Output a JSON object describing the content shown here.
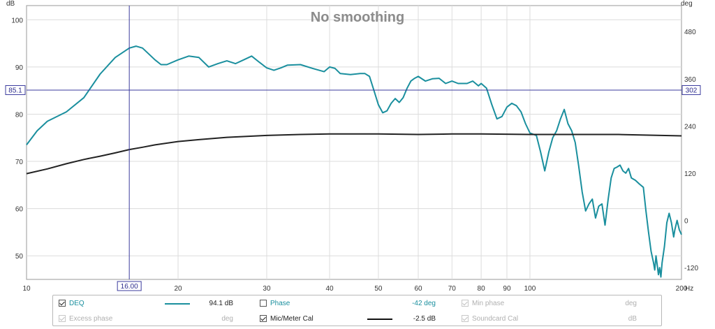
{
  "chart_data": {
    "type": "line",
    "title": "No smoothing",
    "x_unit": "Hz",
    "y_left_unit": "dB",
    "y_right_unit": "deg",
    "xlim": [
      10,
      200
    ],
    "ylim_left": [
      45,
      103
    ],
    "ylim_right": [
      -150,
      546
    ],
    "x_scale": "log",
    "x_ticks": [
      10,
      20,
      30,
      40,
      50,
      60,
      70,
      80,
      90,
      100,
      200
    ],
    "x_tick_labels": [
      "10",
      "20",
      "30",
      "40",
      "50",
      "60",
      "70",
      "80",
      "90",
      "100",
      "200"
    ],
    "y_left_ticks": [
      50,
      60,
      70,
      80,
      90,
      100
    ],
    "y_right_ticks": [
      -120,
      0,
      120,
      240,
      360,
      480
    ],
    "grid": true,
    "cursor": {
      "x": 16.0,
      "y": 85.1,
      "x_label": "16.00",
      "y_label": "85.1",
      "y_right_label": "302"
    },
    "series": [
      {
        "name": "DEQ",
        "color": "#1a8f9e",
        "points": [
          [
            10,
            73.5
          ],
          [
            10.5,
            76.5
          ],
          [
            11,
            78.5
          ],
          [
            12,
            80.5
          ],
          [
            13,
            83.5
          ],
          [
            14,
            88.5
          ],
          [
            15,
            92
          ],
          [
            16,
            94
          ],
          [
            16.5,
            94.4
          ],
          [
            17,
            94
          ],
          [
            18,
            91.5
          ],
          [
            18.5,
            90.5
          ],
          [
            19,
            90.5
          ],
          [
            20,
            91.5
          ],
          [
            21,
            92.3
          ],
          [
            22,
            92
          ],
          [
            23,
            90
          ],
          [
            24,
            90.7
          ],
          [
            25,
            91.3
          ],
          [
            26,
            90.7
          ],
          [
            27,
            91.5
          ],
          [
            28,
            92.3
          ],
          [
            29,
            91
          ],
          [
            30,
            89.8
          ],
          [
            31,
            89.3
          ],
          [
            32,
            89.8
          ],
          [
            33,
            90.4
          ],
          [
            35,
            90.5
          ],
          [
            37,
            89.7
          ],
          [
            39,
            89
          ],
          [
            40,
            90
          ],
          [
            41,
            89.7
          ],
          [
            42,
            88.6
          ],
          [
            44,
            88.4
          ],
          [
            46,
            88.6
          ],
          [
            47,
            88.6
          ],
          [
            48,
            88
          ],
          [
            49,
            85
          ],
          [
            50,
            82
          ],
          [
            51,
            80.3
          ],
          [
            52,
            80.7
          ],
          [
            53,
            82.3
          ],
          [
            54,
            83.3
          ],
          [
            55,
            82.5
          ],
          [
            56,
            83.5
          ],
          [
            57,
            85.5
          ],
          [
            58,
            87
          ],
          [
            59,
            87.6
          ],
          [
            60,
            88
          ],
          [
            62,
            87
          ],
          [
            64,
            87.5
          ],
          [
            66,
            87.6
          ],
          [
            68,
            86.5
          ],
          [
            70,
            87
          ],
          [
            72,
            86.5
          ],
          [
            75,
            86.5
          ],
          [
            77,
            87
          ],
          [
            79,
            86
          ],
          [
            80,
            86.5
          ],
          [
            82,
            85.5
          ],
          [
            84,
            82
          ],
          [
            86,
            79
          ],
          [
            88,
            79.5
          ],
          [
            90,
            81.5
          ],
          [
            92,
            82.3
          ],
          [
            94,
            81.8
          ],
          [
            96,
            80.5
          ],
          [
            98,
            78
          ],
          [
            100,
            76
          ],
          [
            103,
            75.5
          ],
          [
            105,
            72
          ],
          [
            107,
            68
          ],
          [
            109,
            72
          ],
          [
            111,
            75
          ],
          [
            113,
            76.5
          ],
          [
            115,
            79
          ],
          [
            117,
            81
          ],
          [
            119,
            78
          ],
          [
            121,
            76.5
          ],
          [
            123,
            74
          ],
          [
            125,
            69
          ],
          [
            127,
            63.5
          ],
          [
            129,
            59.5
          ],
          [
            131,
            61
          ],
          [
            133,
            62
          ],
          [
            135,
            58
          ],
          [
            137,
            60.5
          ],
          [
            139,
            61
          ],
          [
            141,
            56.5
          ],
          [
            143,
            62
          ],
          [
            145,
            66.5
          ],
          [
            147,
            68.5
          ],
          [
            149,
            68.8
          ],
          [
            151,
            69.2
          ],
          [
            153,
            68
          ],
          [
            155,
            67.5
          ],
          [
            157,
            68.5
          ],
          [
            159,
            66.5
          ],
          [
            162,
            66
          ],
          [
            165,
            65.2
          ],
          [
            168,
            64.5
          ],
          [
            170,
            59.5
          ],
          [
            172,
            55
          ],
          [
            174,
            51
          ],
          [
            176,
            48.5
          ],
          [
            177,
            47
          ],
          [
            178,
            50
          ],
          [
            179,
            48
          ],
          [
            180,
            46
          ],
          [
            181,
            47.5
          ],
          [
            182,
            45.5
          ],
          [
            183,
            48.5
          ],
          [
            185,
            52
          ],
          [
            187,
            57
          ],
          [
            189,
            59
          ],
          [
            191,
            57
          ],
          [
            193,
            54
          ],
          [
            194,
            55.5
          ],
          [
            196,
            57.5
          ],
          [
            198,
            55.5
          ],
          [
            200,
            54.5
          ]
        ]
      },
      {
        "name": "Mic/Meter Cal",
        "color": "#222222",
        "points": [
          [
            10,
            67.4
          ],
          [
            11,
            68.4
          ],
          [
            12,
            69.5
          ],
          [
            13,
            70.4
          ],
          [
            14,
            71.1
          ],
          [
            15,
            71.8
          ],
          [
            16,
            72.5
          ],
          [
            17,
            73
          ],
          [
            18,
            73.5
          ],
          [
            20,
            74.2
          ],
          [
            22,
            74.6
          ],
          [
            25,
            75.1
          ],
          [
            30,
            75.5
          ],
          [
            35,
            75.7
          ],
          [
            40,
            75.8
          ],
          [
            50,
            75.8
          ],
          [
            60,
            75.7
          ],
          [
            70,
            75.8
          ],
          [
            80,
            75.8
          ],
          [
            100,
            75.7
          ],
          [
            150,
            75.7
          ],
          [
            200,
            75.4
          ]
        ]
      }
    ]
  },
  "legend": {
    "row1": [
      {
        "label": "DEQ",
        "checked": true,
        "enabled": true,
        "value": "94.1 dB",
        "swatch": "#1a8f9e"
      },
      {
        "label": "Phase",
        "checked": false,
        "enabled": true,
        "value": "-42 deg"
      },
      {
        "label": "Min phase",
        "checked": true,
        "enabled": false,
        "value": "deg"
      }
    ],
    "row2": [
      {
        "label": "Excess phase",
        "checked": true,
        "enabled": false,
        "value": "deg"
      },
      {
        "label": "Mic/Meter Cal",
        "checked": true,
        "enabled": true,
        "value": "-2.5 dB",
        "swatch": "#111111"
      },
      {
        "label": "Soundcard Cal",
        "checked": true,
        "enabled": false,
        "value": "dB"
      }
    ]
  }
}
